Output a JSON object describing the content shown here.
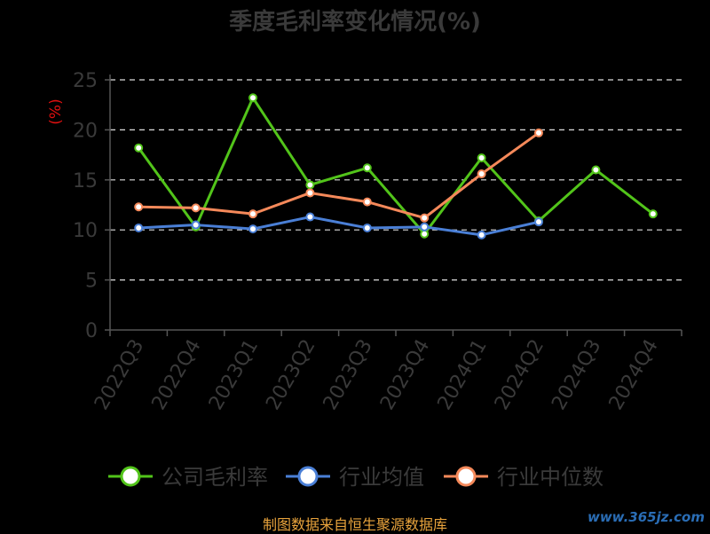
{
  "title": "季度毛利率变化情况(%)",
  "source": "制图数据来自恒生聚源数据库",
  "watermark": "www.365jz.com",
  "chart_data": {
    "type": "line",
    "unit_label": "(%)",
    "categories": [
      "2022Q3",
      "2022Q4",
      "2023Q1",
      "2023Q2",
      "2023Q3",
      "2023Q4",
      "2024Q1",
      "2024Q2",
      "2024Q3",
      "2024Q4"
    ],
    "ylim": [
      0,
      25
    ],
    "yticks": [
      0,
      5,
      10,
      15,
      20,
      25
    ],
    "grid": true,
    "legend_position": "bottom",
    "series": [
      {
        "name": "公司毛利率",
        "color": "#52c41a",
        "values": [
          18.2,
          10.3,
          23.2,
          14.5,
          16.2,
          9.6,
          17.2,
          10.9,
          16.0,
          11.6
        ]
      },
      {
        "name": "行业均值",
        "color": "#4a7fd6",
        "values": [
          10.2,
          10.5,
          10.1,
          11.3,
          10.2,
          10.3,
          9.5,
          10.8,
          null,
          null
        ]
      },
      {
        "name": "行业中位数",
        "color": "#f5895a",
        "values": [
          12.3,
          12.2,
          11.6,
          13.7,
          12.8,
          11.2,
          15.6,
          19.7,
          null,
          null
        ]
      }
    ]
  }
}
